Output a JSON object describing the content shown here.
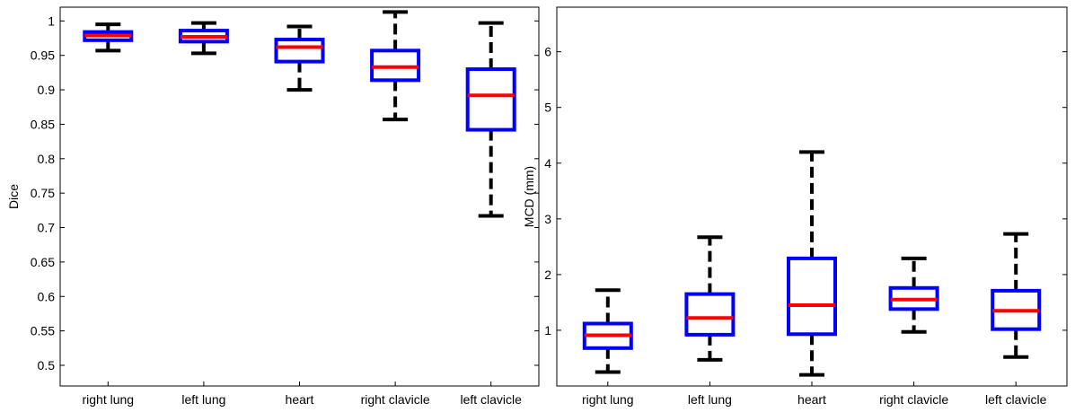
{
  "chart_data": [
    {
      "type": "boxplot",
      "title": "",
      "xlabel": "",
      "ylabel": "Dice",
      "ylim": [
        0.47,
        1.02
      ],
      "yticks": [
        "0.5",
        "0.55",
        "0.6",
        "0.65",
        "0.7",
        "0.75",
        "0.8",
        "0.85",
        "0.9",
        "0.95",
        "1"
      ],
      "categories": [
        "right lung",
        "left lung",
        "heart",
        "right clavicle",
        "left clavicle"
      ],
      "boxes": [
        {
          "label": "right lung",
          "whisker_low": 0.957,
          "q1": 0.972,
          "median": 0.979,
          "q3": 0.984,
          "whisker_high": 0.995
        },
        {
          "label": "left lung",
          "whisker_low": 0.953,
          "q1": 0.97,
          "median": 0.977,
          "q3": 0.986,
          "whisker_high": 0.997
        },
        {
          "label": "heart",
          "whisker_low": 0.9,
          "q1": 0.941,
          "median": 0.962,
          "q3": 0.973,
          "whisker_high": 0.992
        },
        {
          "label": "right clavicle",
          "whisker_low": 0.857,
          "q1": 0.914,
          "median": 0.933,
          "q3": 0.957,
          "whisker_high": 1.013
        },
        {
          "label": "left clavicle",
          "whisker_low": 0.717,
          "q1": 0.842,
          "median": 0.892,
          "q3": 0.93,
          "whisker_high": 0.997
        }
      ],
      "grid": false,
      "colors": {
        "box": "#0000ff",
        "median": "#ff0000",
        "whisker": "#000000"
      }
    },
    {
      "type": "boxplot",
      "title": "",
      "xlabel": "",
      "ylabel": "MCD (mm)",
      "ylim": [
        0,
        6.8
      ],
      "yticks": [
        "1",
        "2",
        "3",
        "4",
        "5",
        "6"
      ],
      "categories": [
        "right lung",
        "left lung",
        "heart",
        "right clavicle",
        "left clavicle"
      ],
      "boxes": [
        {
          "label": "right lung",
          "whisker_low": 0.25,
          "q1": 0.68,
          "median": 0.91,
          "q3": 1.12,
          "whisker_high": 1.72
        },
        {
          "label": "left lung",
          "whisker_low": 0.47,
          "q1": 0.92,
          "median": 1.22,
          "q3": 1.65,
          "whisker_high": 2.67
        },
        {
          "label": "heart",
          "whisker_low": 0.2,
          "q1": 0.93,
          "median": 1.45,
          "q3": 2.29,
          "whisker_high": 4.2
        },
        {
          "label": "right clavicle",
          "whisker_low": 0.97,
          "q1": 1.38,
          "median": 1.55,
          "q3": 1.76,
          "whisker_high": 2.29
        },
        {
          "label": "left clavicle",
          "whisker_low": 0.52,
          "q1": 1.02,
          "median": 1.35,
          "q3": 1.71,
          "whisker_high": 2.73
        }
      ],
      "grid": false,
      "colors": {
        "box": "#0000ff",
        "median": "#ff0000",
        "whisker": "#000000"
      }
    }
  ]
}
